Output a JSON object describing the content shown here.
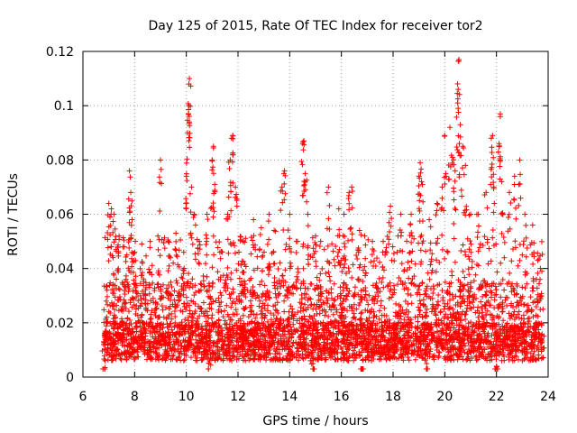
{
  "chart_data": {
    "type": "scatter",
    "title": "Day 125 of 2015, Rate Of TEC Index for receiver tor2",
    "xlabel": "GPS time / hours",
    "ylabel": "ROTI / TECUs",
    "xlim": [
      6,
      24
    ],
    "ylim": [
      0,
      0.12
    ],
    "x_ticks": [
      6,
      8,
      10,
      12,
      14,
      16,
      18,
      20,
      22,
      24
    ],
    "y_ticks": [
      0,
      0.02,
      0.04,
      0.06,
      0.08,
      0.1,
      0.12
    ],
    "x_tick_labels": [
      "6",
      "8",
      "10",
      "12",
      "14",
      "16",
      "18",
      "20",
      "22",
      "24"
    ],
    "y_tick_labels": [
      "0",
      "0.02",
      "0.04",
      "0.06",
      "0.08",
      "0.1",
      "0.12"
    ],
    "grid": true,
    "marker": "+",
    "color": "#ff0000",
    "series": [
      {
        "name": "ROTI",
        "x_range": [
          6.8,
          23.8
        ],
        "points": [
          [
            6.8,
            0.012
          ],
          [
            6.9,
            0.028
          ],
          [
            7.0,
            0.064
          ],
          [
            7.1,
            0.062
          ],
          [
            7.2,
            0.06
          ],
          [
            7.4,
            0.052
          ],
          [
            7.6,
            0.048
          ],
          [
            7.7,
            0.045
          ],
          [
            7.8,
            0.076
          ],
          [
            7.85,
            0.068
          ],
          [
            7.9,
            0.058
          ],
          [
            8.0,
            0.046
          ],
          [
            8.3,
            0.042
          ],
          [
            8.6,
            0.05
          ],
          [
            8.9,
            0.052
          ],
          [
            9.0,
            0.08
          ],
          [
            9.3,
            0.05
          ],
          [
            9.6,
            0.053
          ],
          [
            9.9,
            0.046
          ],
          [
            10.0,
            0.074
          ],
          [
            10.05,
            0.09
          ],
          [
            10.1,
            0.1
          ],
          [
            10.1,
            0.108
          ],
          [
            10.12,
            0.11
          ],
          [
            10.2,
            0.07
          ],
          [
            10.3,
            0.06
          ],
          [
            10.5,
            0.05
          ],
          [
            10.8,
            0.06
          ],
          [
            11.0,
            0.08
          ],
          [
            11.05,
            0.085
          ],
          [
            11.1,
            0.071
          ],
          [
            11.3,
            0.046
          ],
          [
            11.6,
            0.06
          ],
          [
            11.7,
            0.08
          ],
          [
            11.75,
            0.088
          ],
          [
            11.8,
            0.089
          ],
          [
            11.9,
            0.07
          ],
          [
            12.2,
            0.05
          ],
          [
            12.6,
            0.058
          ],
          [
            12.9,
            0.055
          ],
          [
            13.2,
            0.06
          ],
          [
            13.4,
            0.054
          ],
          [
            13.7,
            0.07
          ],
          [
            13.8,
            0.076
          ],
          [
            14.0,
            0.06
          ],
          [
            14.3,
            0.05
          ],
          [
            14.5,
            0.086
          ],
          [
            14.55,
            0.087
          ],
          [
            14.6,
            0.075
          ],
          [
            14.7,
            0.06
          ],
          [
            15.0,
            0.052
          ],
          [
            15.2,
            0.05
          ],
          [
            15.5,
            0.07
          ],
          [
            15.9,
            0.062
          ],
          [
            16.1,
            0.06
          ],
          [
            16.3,
            0.068
          ],
          [
            16.4,
            0.07
          ],
          [
            16.7,
            0.054
          ],
          [
            16.9,
            0.052
          ],
          [
            17.2,
            0.05
          ],
          [
            17.6,
            0.046
          ],
          [
            17.9,
            0.063
          ],
          [
            18.3,
            0.06
          ],
          [
            18.7,
            0.06
          ],
          [
            19.0,
            0.074
          ],
          [
            19.05,
            0.079
          ],
          [
            19.1,
            0.072
          ],
          [
            19.4,
            0.058
          ],
          [
            19.7,
            0.064
          ],
          [
            19.9,
            0.07
          ],
          [
            20.0,
            0.089
          ],
          [
            20.2,
            0.092
          ],
          [
            20.3,
            0.081
          ],
          [
            20.4,
            0.076
          ],
          [
            20.5,
            0.101
          ],
          [
            20.52,
            0.106
          ],
          [
            20.55,
            0.117
          ],
          [
            20.6,
            0.093
          ],
          [
            20.7,
            0.085
          ],
          [
            20.8,
            0.078
          ],
          [
            21.0,
            0.06
          ],
          [
            21.3,
            0.06
          ],
          [
            21.6,
            0.068
          ],
          [
            21.8,
            0.088
          ],
          [
            21.85,
            0.089
          ],
          [
            21.9,
            0.07
          ],
          [
            22.1,
            0.086
          ],
          [
            22.15,
            0.097
          ],
          [
            22.2,
            0.072
          ],
          [
            22.5,
            0.068
          ],
          [
            22.7,
            0.074
          ],
          [
            22.9,
            0.08
          ],
          [
            23.1,
            0.06
          ],
          [
            23.4,
            0.056
          ],
          [
            23.6,
            0.043
          ],
          [
            23.7,
            0.04
          ],
          [
            23.8,
            0.025
          ],
          [
            16.8,
            0.003
          ],
          [
            22.0,
            0.004
          ],
          [
            14.9,
            0.005
          ],
          [
            10.9,
            0.006
          ],
          [
            19.3,
            0.005
          ]
        ]
      }
    ]
  }
}
